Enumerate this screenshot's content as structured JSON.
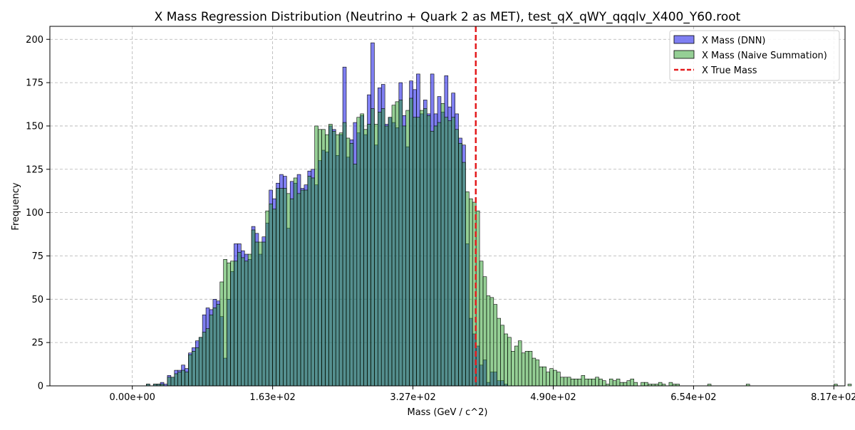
{
  "chart_data": {
    "type": "histogram",
    "title": "X Mass Regression Distribution (Neutrino + Quark 2 as MET), test_qX_qWY_qqqlv_X400_Y60.root",
    "xlabel": "Mass (GeV / c^2)",
    "ylabel": "Frequency",
    "xlim": [
      -96,
      830
    ],
    "ylim": [
      0,
      207.5
    ],
    "x_ticks": [
      0,
      163.4,
      326.8,
      490.2,
      653.6,
      817
    ],
    "x_tick_labels": [
      "0.00e+00",
      "1.63e+02",
      "3.27e+02",
      "4.90e+02",
      "6.54e+02",
      "8.17e+02"
    ],
    "y_ticks": [
      0,
      25,
      50,
      75,
      100,
      125,
      150,
      175,
      200
    ],
    "y_tick_labels": [
      "0",
      "25",
      "50",
      "75",
      "100",
      "125",
      "150",
      "175",
      "200"
    ],
    "grid": true,
    "legend_position": "top-right",
    "bin_start": 0,
    "bin_width": 4.085,
    "reference_line": {
      "label": "X True Mass",
      "x": 400,
      "color": "#e41a1c",
      "style": "dashed"
    },
    "series": [
      {
        "name": "X Mass (DNN)",
        "color": "#0000e6",
        "opacity": 0.5,
        "values": [
          0,
          0,
          0,
          0,
          1,
          0,
          1,
          1,
          2,
          1,
          6,
          5,
          9,
          9,
          12,
          10,
          19,
          22,
          26,
          28,
          41,
          45,
          44,
          50,
          49,
          40,
          16,
          50,
          66,
          82,
          82,
          78,
          76,
          73,
          92,
          88,
          76,
          86,
          94,
          113,
          108,
          117,
          122,
          121,
          91,
          118,
          117,
          122,
          114,
          116,
          124,
          125,
          116,
          130,
          136,
          135,
          150,
          148,
          133,
          145,
          184,
          132,
          142,
          152,
          146,
          156,
          145,
          168,
          198,
          139,
          172,
          174,
          151,
          155,
          152,
          149,
          175,
          156,
          138,
          176,
          171,
          180,
          157,
          165,
          157,
          180,
          157,
          167,
          158,
          179,
          161,
          169,
          157,
          143,
          139,
          82,
          39,
          30,
          23,
          12,
          15,
          2,
          8,
          8,
          3,
          3,
          1,
          0,
          0,
          0,
          0,
          0,
          0,
          0,
          0,
          0,
          0,
          0,
          0,
          0,
          0,
          0,
          0,
          0,
          0,
          0,
          0,
          0,
          0,
          0,
          0,
          0,
          0,
          0,
          0,
          0,
          0,
          0,
          0,
          0,
          0,
          0,
          0,
          0,
          0,
          0,
          0,
          0,
          0,
          0,
          0,
          0,
          0,
          0,
          0,
          0,
          0,
          0,
          0,
          0,
          0,
          0,
          0,
          0,
          0,
          0,
          0,
          0,
          0,
          0,
          0,
          0,
          0,
          0,
          0,
          0,
          0,
          0,
          0,
          0,
          0,
          0,
          0,
          0,
          0,
          0,
          0,
          0,
          0,
          0,
          0,
          0,
          0,
          0,
          0,
          0,
          0,
          0,
          0,
          0,
          0,
          0
        ]
      },
      {
        "name": "X Mass (Naive Summation)",
        "color": "#2ca02c",
        "opacity": 0.5,
        "values": [
          0,
          0,
          0,
          0,
          1,
          0,
          1,
          1,
          1,
          0,
          5,
          5,
          7,
          8,
          9,
          8,
          18,
          20,
          22,
          28,
          31,
          33,
          41,
          45,
          47,
          60,
          73,
          71,
          72,
          72,
          77,
          74,
          72,
          76,
          90,
          83,
          83,
          83,
          101,
          105,
          102,
          114,
          114,
          114,
          111,
          108,
          120,
          111,
          113,
          113,
          121,
          120,
          150,
          148,
          148,
          145,
          151,
          147,
          145,
          146,
          152,
          143,
          140,
          128,
          155,
          157,
          148,
          151,
          160,
          151,
          158,
          160,
          150,
          155,
          162,
          164,
          165,
          150,
          159,
          166,
          155,
          155,
          159,
          160,
          156,
          147,
          150,
          152,
          163,
          155,
          153,
          155,
          148,
          140,
          129,
          112,
          108,
          106,
          101,
          72,
          63,
          52,
          51,
          47,
          39,
          35,
          30,
          28,
          20,
          23,
          26,
          19,
          20,
          20,
          16,
          15,
          11,
          11,
          8,
          10,
          9,
          8,
          5,
          5,
          5,
          4,
          4,
          4,
          6,
          4,
          4,
          4,
          5,
          4,
          3,
          1,
          4,
          3,
          4,
          2,
          2,
          3,
          4,
          2,
          0,
          2,
          2,
          1,
          1,
          1,
          2,
          1,
          0,
          2,
          1,
          1,
          0,
          0,
          0,
          0,
          0,
          0,
          0,
          0,
          1,
          0,
          0,
          0,
          0,
          0,
          0,
          0,
          0,
          0,
          0,
          1,
          0,
          0,
          0,
          0,
          0,
          0,
          0,
          0,
          0,
          0,
          0,
          0,
          0,
          0,
          0,
          0,
          0,
          0,
          0,
          0,
          0,
          0,
          0,
          0,
          1,
          0,
          0,
          0,
          1,
          0,
          0,
          0,
          0,
          1
        ]
      }
    ]
  }
}
